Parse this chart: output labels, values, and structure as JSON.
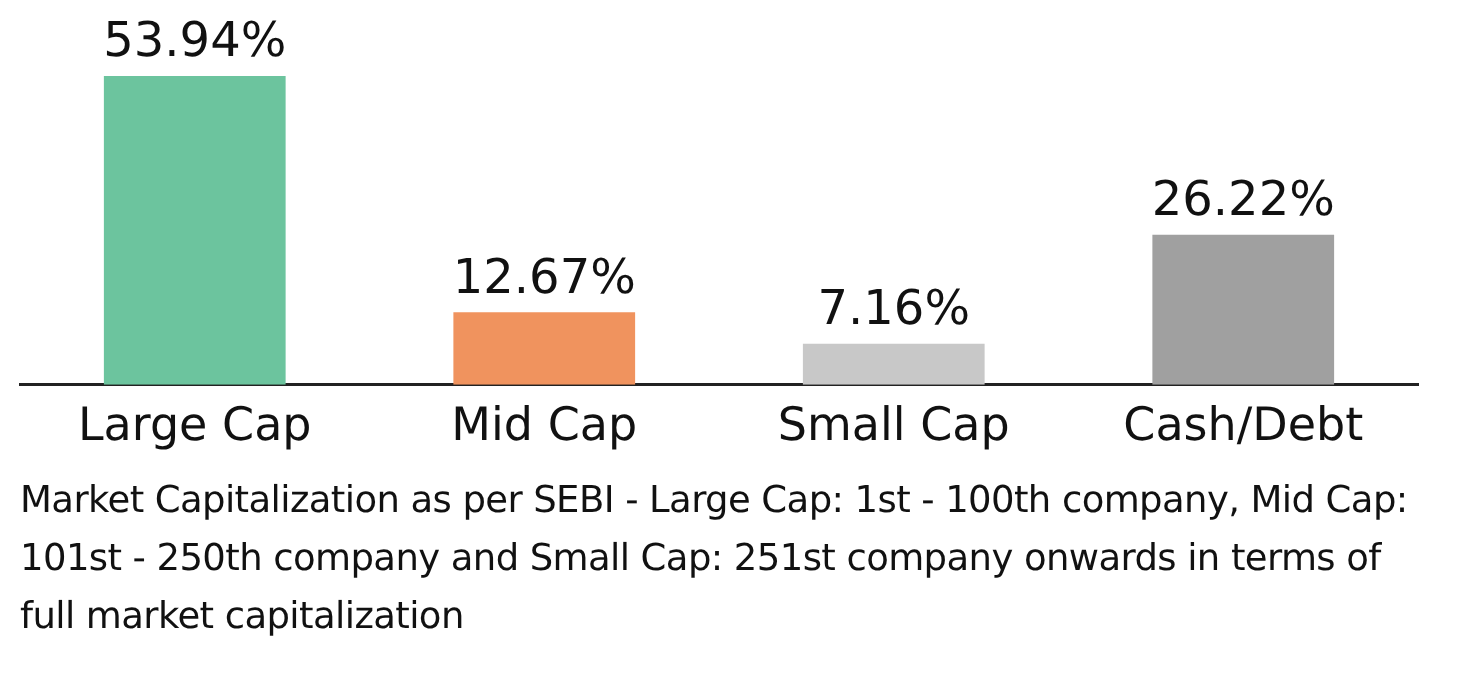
{
  "chart_data": {
    "type": "bar",
    "categories": [
      "Large Cap",
      "Mid Cap",
      "Small Cap",
      "Cash/Debt"
    ],
    "values": [
      53.94,
      12.67,
      7.16,
      26.22
    ],
    "value_labels": [
      "53.94%",
      "12.67%",
      "7.16%",
      "26.22%"
    ],
    "colors": [
      "#6cc49e",
      "#f0935e",
      "#c8c8c8",
      "#a0a0a0"
    ],
    "grid": false,
    "legend": false,
    "annotations": [
      "Market Capitalization as per SEBI - Large Cap: 1st - 100th company, Mid Cap: 101st - 250th company and Small Cap: 251st company onwards in terms of full market capitalization"
    ]
  }
}
